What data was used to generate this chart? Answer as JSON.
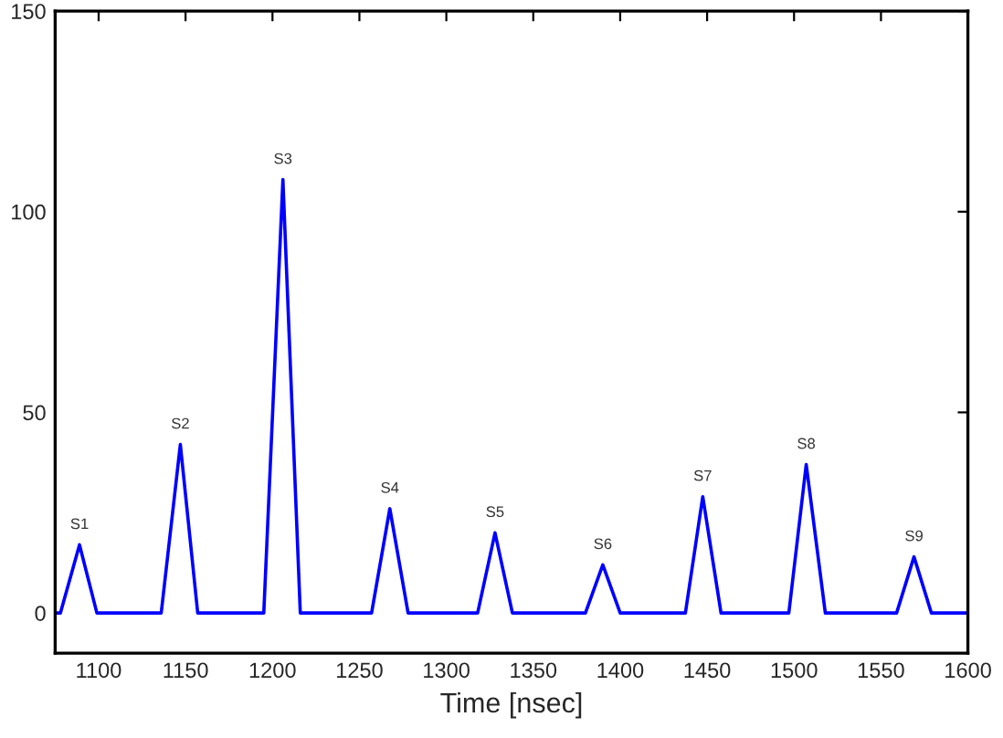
{
  "chart_data": {
    "type": "line",
    "xlabel": "Time [nsec]",
    "x": [
      1075,
      1078,
      1089,
      1099,
      1136,
      1147,
      1157,
      1195,
      1206,
      1216,
      1257,
      1267.5,
      1278,
      1318,
      1328,
      1338,
      1380,
      1390,
      1400,
      1437.5,
      1447.5,
      1458,
      1497,
      1507,
      1518,
      1559,
      1569,
      1579,
      1600
    ],
    "series": [
      {
        "color": "#0000ff",
        "values": [
          0,
          0,
          17,
          0,
          0,
          42,
          0,
          0,
          108,
          0,
          0,
          26,
          0,
          0,
          20,
          0,
          0,
          12,
          0,
          0,
          29,
          0,
          0,
          37,
          0,
          0,
          14,
          0,
          0
        ]
      }
    ],
    "annotations": [
      {
        "text": "S1",
        "x": 1089,
        "y": 17
      },
      {
        "text": "S2",
        "x": 1147,
        "y": 42
      },
      {
        "text": "S3",
        "x": 1206,
        "y": 108
      },
      {
        "text": "S4",
        "x": 1267.5,
        "y": 26
      },
      {
        "text": "S5",
        "x": 1328,
        "y": 20
      },
      {
        "text": "S6",
        "x": 1390,
        "y": 12
      },
      {
        "text": "S7",
        "x": 1447.5,
        "y": 29
      },
      {
        "text": "S8",
        "x": 1507,
        "y": 37
      },
      {
        "text": "S9",
        "x": 1569,
        "y": 14
      }
    ],
    "xlim": [
      1075,
      1600
    ],
    "ylim": [
      -10,
      150
    ],
    "xticks": [
      1100,
      1150,
      1200,
      1250,
      1300,
      1350,
      1400,
      1450,
      1500,
      1550,
      1600
    ],
    "yticks": [
      0,
      50,
      100,
      150
    ],
    "grid": false,
    "marker": "none",
    "line_style": "solid"
  }
}
